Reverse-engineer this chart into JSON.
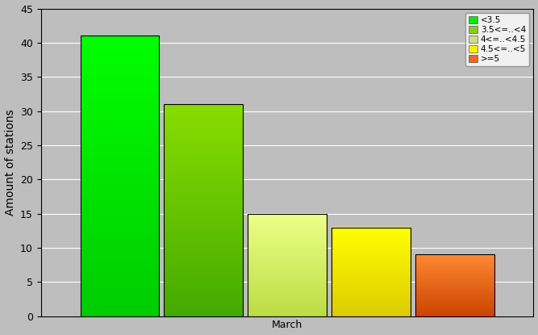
{
  "bars": [
    {
      "label": "<3.5",
      "value": 41,
      "color_top": "#00ff00",
      "color_bot": "#00cc00"
    },
    {
      "label": "3.5<=..<4",
      "value": 31,
      "color_top": "#88dd00",
      "color_bot": "#44aa00"
    },
    {
      "label": "4<=..<4.5",
      "value": 15,
      "color_top": "#eeff88",
      "color_bot": "#bbdd44"
    },
    {
      "label": "4.5<=..<5",
      "value": 13,
      "color_top": "#ffff00",
      "color_bot": "#ddcc00"
    },
    {
      "label": ">=5",
      "value": 9,
      "color_top": "#ff8833",
      "color_bot": "#cc4400"
    }
  ],
  "legend_colors": [
    "#00ee00",
    "#88cc22",
    "#ccdd88",
    "#ffee00",
    "#ee6622"
  ],
  "ylabel": "Amount of stations",
  "xlabel": "March",
  "ylim": [
    0,
    45
  ],
  "yticks": [
    0,
    5,
    10,
    15,
    20,
    25,
    30,
    35,
    40,
    45
  ],
  "background_color": "#bebebe",
  "plot_bg_color": "#bebebe",
  "grid_color": "#ffffff",
  "legend_fontsize": 7.5,
  "ylabel_fontsize": 10,
  "xlabel_fontsize": 10,
  "tick_fontsize": 9
}
